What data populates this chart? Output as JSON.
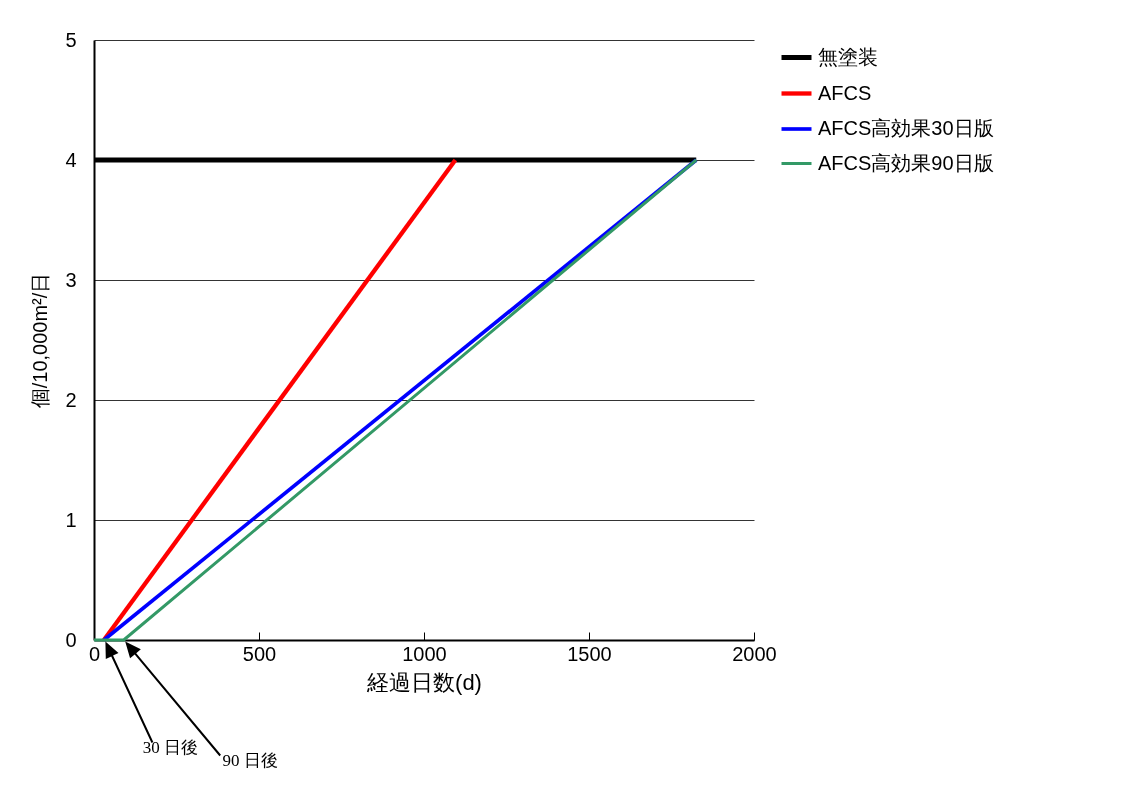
{
  "chart_data": {
    "type": "line",
    "xlabel": "経過日数(d)",
    "ylabel": "個/10,000m²/日",
    "xlim": [
      0,
      2000
    ],
    "xticks": [
      0,
      500,
      1000,
      1500,
      2000
    ],
    "ylim": [
      0,
      5
    ],
    "yticks": [
      0,
      1,
      2,
      3,
      4,
      5
    ],
    "grid": "y",
    "legend": "right",
    "marker": "none",
    "line_style": "solid",
    "series": [
      {
        "name": "無塗装",
        "color": "#000000",
        "x": [
          0,
          1825
        ],
        "values": [
          4,
          4
        ]
      },
      {
        "name": "AFCS",
        "color": "#ff0000",
        "x": [
          30,
          1095
        ],
        "values": [
          0,
          4
        ]
      },
      {
        "name": "AFCS高効果30日版",
        "color": "#0000ff",
        "x": [
          30,
          1825
        ],
        "values": [
          0,
          4
        ]
      },
      {
        "name": "AFCS高効果90日版",
        "color": "#339966",
        "x": [
          0,
          90,
          1825
        ],
        "values": [
          0,
          0,
          4
        ]
      }
    ],
    "annotations": [
      "30 日後",
      "90 日後"
    ]
  }
}
